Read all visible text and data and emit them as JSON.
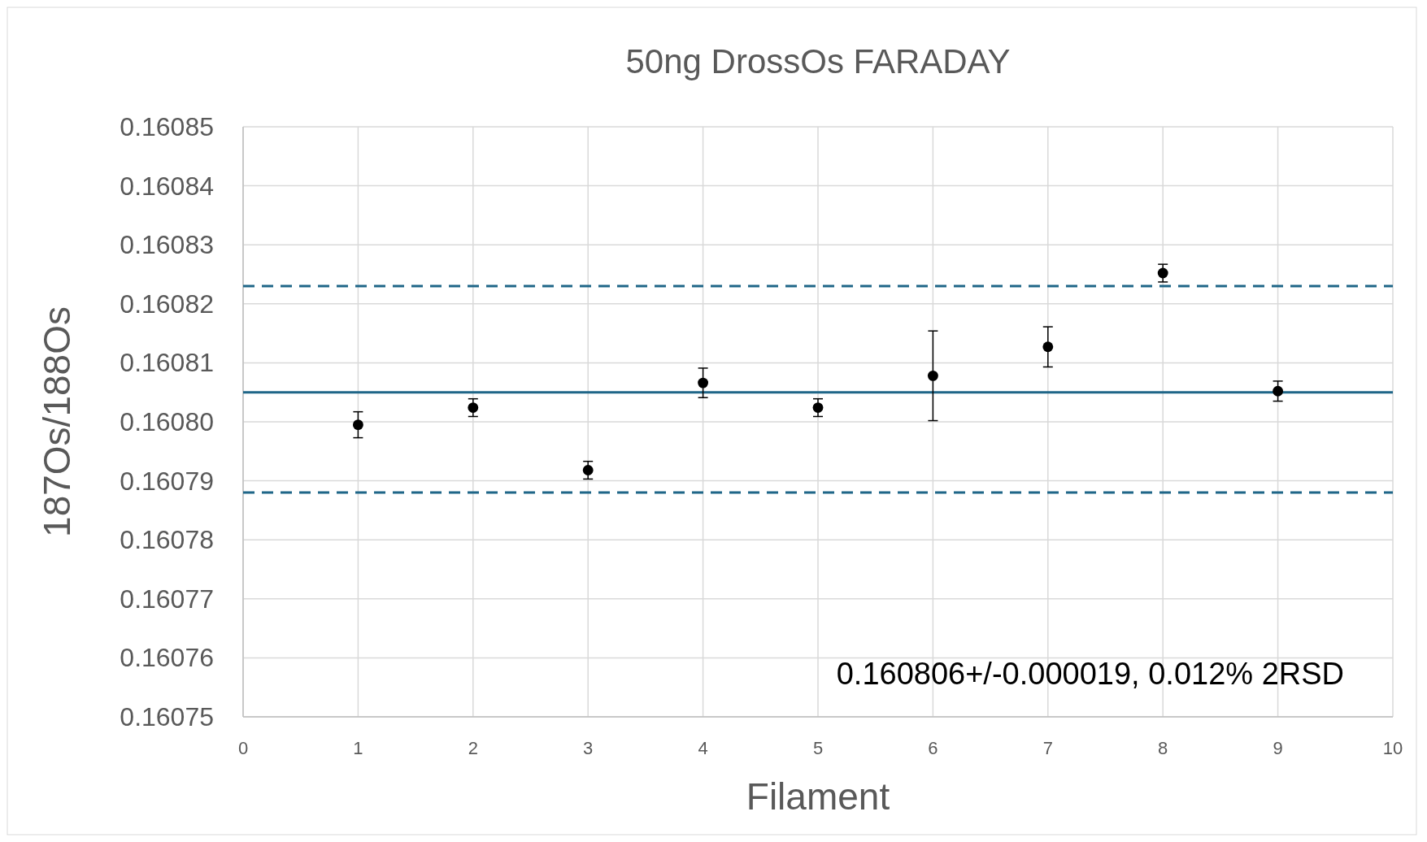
{
  "chart_data": {
    "type": "scatter",
    "title": "50ng DrossOs FARADAY",
    "xlabel": "Filament",
    "ylabel": "187Os/188Os",
    "x": [
      1,
      2,
      3,
      4,
      5,
      6,
      7,
      8,
      9
    ],
    "series": [
      {
        "color": "#000000",
        "values": [
          0.1607995,
          0.1608024,
          0.1607918,
          0.1608066,
          0.1608024,
          0.1608078,
          0.1608127,
          0.1608252,
          0.1608052
        ],
        "errors": [
          2.2e-06,
          1.5e-06,
          1.5e-06,
          2.5e-06,
          1.5e-06,
          7.6e-06,
          3.4e-06,
          1.5e-06,
          1.7e-06
        ]
      }
    ],
    "xlim": [
      0,
      10
    ],
    "xticks": [
      0,
      1,
      2,
      3,
      4,
      5,
      6,
      7,
      8,
      9,
      10
    ],
    "ylim": [
      0.16075,
      0.16085
    ],
    "yticks": [
      {
        "value": 0.16075,
        "label": "0.16075"
      },
      {
        "value": 0.16076,
        "label": "0.16076"
      },
      {
        "value": 0.16077,
        "label": "0.16077"
      },
      {
        "value": 0.16078,
        "label": "0.16078"
      },
      {
        "value": 0.16079,
        "label": "0.16079"
      },
      {
        "value": 0.1608,
        "label": "0.16080"
      },
      {
        "value": 0.16081,
        "label": "0.16081"
      },
      {
        "value": 0.16082,
        "label": "0.16082"
      },
      {
        "value": 0.16083,
        "label": "0.16083"
      },
      {
        "value": 0.16084,
        "label": "0.16084"
      },
      {
        "value": 0.16085,
        "label": "0.16085"
      }
    ],
    "ref_lines": [
      {
        "axis": "y",
        "value": 0.160805,
        "color": "#1f6688",
        "line_style": "solid"
      },
      {
        "axis": "y",
        "value": 0.160823,
        "color": "#1f6688",
        "line_style": "dashed"
      },
      {
        "axis": "y",
        "value": 0.160788,
        "color": "#1f6688",
        "line_style": "dashed"
      }
    ],
    "annotations": [
      "0.160806+/-0.000019, 0.012% 2RSD"
    ],
    "grid": true,
    "marker": "circle"
  }
}
